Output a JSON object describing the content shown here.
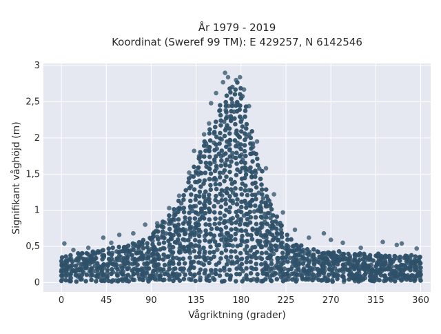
{
  "chart_data": {
    "type": "scatter",
    "title": "År 1979 - 2019",
    "subtitle": "Koordinat (Sweref 99 TM): E 429257, N 6142546",
    "xlabel": "Vågriktning (grader)",
    "ylabel": "Signifikant våghöjd (m)",
    "xlim": [
      -18,
      370
    ],
    "ylim": [
      -0.13,
      3.03
    ],
    "x_ticks": [
      0,
      45,
      90,
      135,
      180,
      225,
      270,
      315,
      360
    ],
    "x_tick_labels": [
      "0",
      "45",
      "90",
      "135",
      "180",
      "225",
      "270",
      "315",
      "360"
    ],
    "y_ticks": [
      0,
      0.5,
      1,
      1.5,
      2,
      2.5,
      3
    ],
    "y_tick_labels": [
      "0",
      "0,5",
      "1",
      "1,5",
      "2",
      "2,5",
      "3"
    ],
    "grid": true,
    "legend": "none",
    "marker_color": "#2e5068",
    "background_color": "#e5e8f0",
    "envelope": {
      "direction_deg": [
        0,
        20,
        45,
        65,
        90,
        100,
        110,
        120,
        125,
        130,
        135,
        140,
        145,
        150,
        155,
        160,
        165,
        170,
        175,
        180,
        185,
        190,
        195,
        200,
        205,
        210,
        215,
        220,
        225,
        230,
        240,
        250,
        260,
        270,
        290,
        315,
        340,
        360
      ],
      "max_height_m": [
        0.35,
        0.4,
        0.45,
        0.5,
        0.65,
        0.8,
        0.95,
        1.15,
        1.35,
        1.5,
        1.65,
        1.85,
        2.0,
        2.15,
        2.25,
        2.5,
        2.6,
        2.7,
        2.75,
        2.7,
        2.45,
        2.1,
        1.8,
        1.55,
        1.3,
        1.1,
        0.95,
        0.8,
        0.7,
        0.6,
        0.5,
        0.45,
        0.42,
        0.42,
        0.4,
        0.38,
        0.37,
        0.35
      ]
    },
    "outliers": [
      {
        "x": 3,
        "y": 0.54
      },
      {
        "x": 12,
        "y": 0.45
      },
      {
        "x": 27,
        "y": 0.48
      },
      {
        "x": 42,
        "y": 0.62
      },
      {
        "x": 50,
        "y": 0.55
      },
      {
        "x": 58,
        "y": 0.66
      },
      {
        "x": 72,
        "y": 0.68
      },
      {
        "x": 84,
        "y": 0.8
      },
      {
        "x": 96,
        "y": 0.82
      },
      {
        "x": 108,
        "y": 1.03
      },
      {
        "x": 118,
        "y": 1.2
      },
      {
        "x": 128,
        "y": 1.52
      },
      {
        "x": 133,
        "y": 1.82
      },
      {
        "x": 143,
        "y": 2.05
      },
      {
        "x": 148,
        "y": 2.2
      },
      {
        "x": 150,
        "y": 2.48
      },
      {
        "x": 155,
        "y": 2.62
      },
      {
        "x": 162,
        "y": 2.77
      },
      {
        "x": 164,
        "y": 2.9
      },
      {
        "x": 167,
        "y": 2.84
      },
      {
        "x": 175,
        "y": 2.8
      },
      {
        "x": 179,
        "y": 2.84
      },
      {
        "x": 183,
        "y": 2.67
      },
      {
        "x": 188,
        "y": 2.44
      },
      {
        "x": 196,
        "y": 1.95
      },
      {
        "x": 205,
        "y": 1.58
      },
      {
        "x": 213,
        "y": 1.22
      },
      {
        "x": 222,
        "y": 0.97
      },
      {
        "x": 234,
        "y": 0.73
      },
      {
        "x": 248,
        "y": 0.62
      },
      {
        "x": 263,
        "y": 0.68
      },
      {
        "x": 270,
        "y": 0.59
      },
      {
        "x": 282,
        "y": 0.55
      },
      {
        "x": 300,
        "y": 0.48
      },
      {
        "x": 322,
        "y": 0.56
      },
      {
        "x": 336,
        "y": 0.52
      },
      {
        "x": 341,
        "y": 0.54
      },
      {
        "x": 356,
        "y": 0.47
      },
      {
        "x": 146,
        "y": 0.03
      },
      {
        "x": 200,
        "y": 0.02
      },
      {
        "x": 236,
        "y": 0.04
      },
      {
        "x": 283,
        "y": 0.01
      },
      {
        "x": 296,
        "y": 0.05
      },
      {
        "x": 8,
        "y": 0.02
      },
      {
        "x": 96,
        "y": 0.04
      },
      {
        "x": 330,
        "y": 0.06
      }
    ]
  }
}
